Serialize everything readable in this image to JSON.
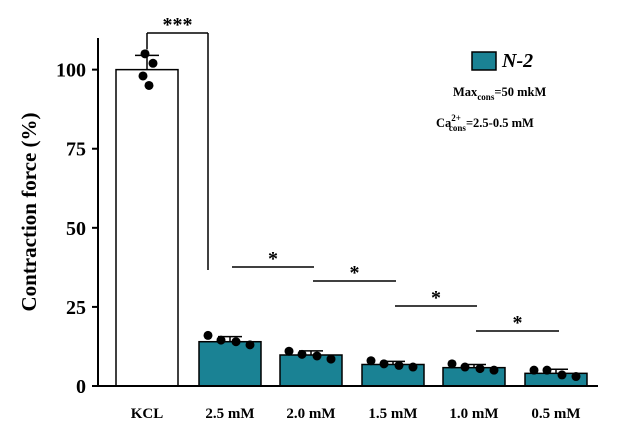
{
  "chart_data": {
    "type": "bar",
    "ylabel": "Contraction force (%)",
    "ylim": [
      0,
      110
    ],
    "yticks": [
      0,
      25,
      50,
      75,
      100
    ],
    "categories": [
      "KCL",
      "2.5 mM",
      "2.0 mM",
      "1.5 mM",
      "1.0 mM",
      "0.5 mM"
    ],
    "values": [
      100,
      14,
      9.8,
      6.8,
      5.8,
      4.0
    ],
    "errors": [
      4.5,
      1.6,
      1.3,
      1.0,
      1.0,
      1.3
    ],
    "points": [
      [
        105,
        102,
        98,
        95
      ],
      [
        16,
        14.5,
        14,
        13
      ],
      [
        11,
        10,
        9.5,
        8.5
      ],
      [
        8,
        7,
        6.5,
        6
      ],
      [
        7,
        6,
        5.5,
        5
      ],
      [
        5,
        5,
        3.5,
        3
      ]
    ],
    "bar_colors": [
      "#ffffff",
      "#1a8294",
      "#1a8294",
      "#1a8294",
      "#1a8294",
      "#1a8294"
    ],
    "legend": {
      "label": "N-2",
      "color": "#1a8294",
      "location": "top-right",
      "note1": {
        "pre": "Max",
        "sub": "cons",
        "post": "=50 mkM"
      },
      "note2": {
        "pre": "Ca",
        "sup": "2+",
        "sub": "cons",
        "post": "=2.5-0.5 mM"
      }
    },
    "significance": [
      {
        "from": 0,
        "to": 1,
        "label": "***"
      },
      {
        "from": 1,
        "to": 2,
        "label": "*"
      },
      {
        "from": 2,
        "to": 3,
        "label": "*"
      },
      {
        "from": 3,
        "to": 4,
        "label": "*"
      },
      {
        "from": 4,
        "to": 5,
        "label": "*"
      }
    ]
  }
}
